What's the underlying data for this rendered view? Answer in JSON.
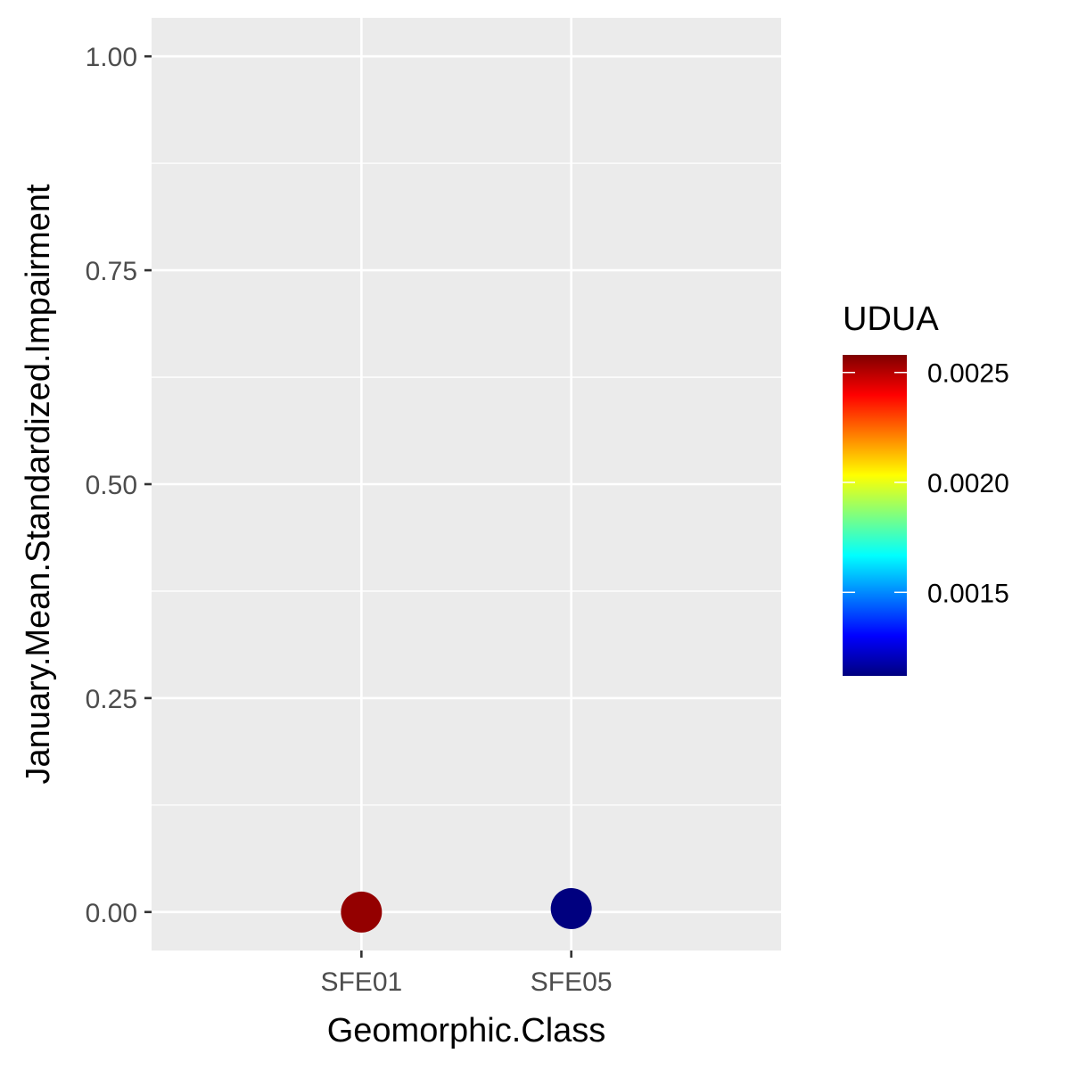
{
  "chart_data": {
    "type": "scatter",
    "title": "",
    "xlabel": "Geomorphic.Class",
    "ylabel": "January.Mean.Standardized.Impairment",
    "categories": [
      "SFE01",
      "SFE05"
    ],
    "points": [
      {
        "x": "SFE01",
        "y": 0.0,
        "color_value": 0.00255
      },
      {
        "x": "SFE05",
        "y": 0.004,
        "color_value": 0.00112
      }
    ],
    "ylim": [
      -0.045,
      1.045
    ],
    "y_ticks": [
      0.0,
      0.25,
      0.5,
      0.75,
      1.0
    ],
    "y_tick_labels": [
      "0.00",
      "0.25",
      "0.50",
      "0.75",
      "1.00"
    ],
    "grid": true,
    "panel_background": "#ebebeb",
    "grid_color": "#ffffff",
    "legend": {
      "title": "UDUA",
      "position": "right",
      "range": [
        0.00112,
        0.00258
      ],
      "breaks": [
        0.0015,
        0.002,
        0.0025
      ],
      "break_labels": [
        "0.0015",
        "0.0020",
        "0.0025"
      ],
      "colormap": [
        "#00007F",
        "#0000FF",
        "#007FFF",
        "#00FFFF",
        "#7FFF7F",
        "#FFFF00",
        "#FF7F00",
        "#FF0000",
        "#7F0000"
      ]
    }
  }
}
